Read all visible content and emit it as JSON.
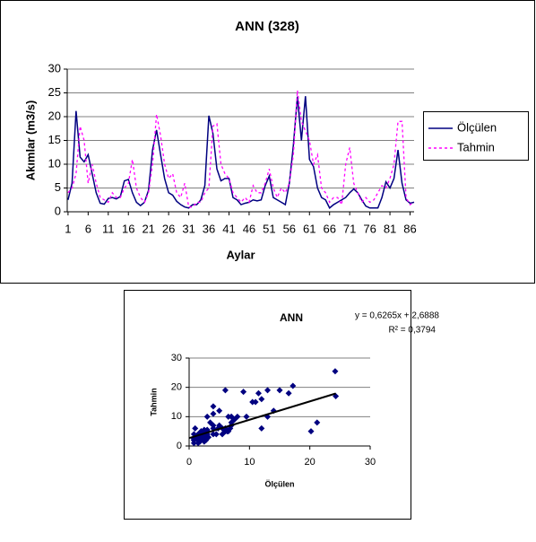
{
  "chart_data": [
    {
      "type": "line",
      "title": "ANN (328)",
      "ylabel": "Akımlar (m3/s)",
      "xlabel": "Aylar",
      "x": [
        1,
        2,
        3,
        4,
        5,
        6,
        7,
        8,
        9,
        10,
        11,
        12,
        13,
        14,
        15,
        16,
        17,
        18,
        19,
        20,
        21,
        22,
        23,
        24,
        25,
        26,
        27,
        28,
        29,
        30,
        31,
        32,
        33,
        34,
        35,
        36,
        37,
        38,
        39,
        40,
        41,
        42,
        43,
        44,
        45,
        46,
        47,
        48,
        49,
        50,
        51,
        52,
        53,
        54,
        55,
        56,
        57,
        58,
        59,
        60,
        61,
        62,
        63,
        64,
        65,
        66,
        67,
        68,
        69,
        70,
        71,
        72,
        73,
        74,
        75,
        76,
        77,
        78,
        79,
        80,
        81,
        82,
        83,
        84,
        85,
        86,
        87
      ],
      "xlim": [
        0.8,
        87
      ],
      "xticks": [
        1,
        6,
        11,
        16,
        21,
        26,
        31,
        36,
        41,
        46,
        51,
        56,
        61,
        66,
        71,
        76,
        81,
        86
      ],
      "ylim": [
        0,
        30
      ],
      "yticks": [
        0,
        5,
        10,
        15,
        20,
        25,
        30
      ],
      "grid": true,
      "legend": "right",
      "series": [
        {
          "name": "Ölçülen",
          "color": "#000080",
          "style": "solid",
          "values": [
            2.5,
            6,
            21.2,
            11.5,
            10.5,
            12,
            8,
            4,
            1.8,
            1.6,
            2.8,
            3,
            2.7,
            3.2,
            6.5,
            6.8,
            4,
            2,
            1.3,
            2,
            4.5,
            13,
            17.2,
            12,
            7,
            4,
            3.5,
            2.2,
            1.5,
            1,
            0.8,
            1.5,
            1.5,
            2.5,
            5.5,
            20.2,
            16.5,
            9,
            6.5,
            7,
            7,
            3,
            2.5,
            1.5,
            1.8,
            2,
            2.5,
            2.3,
            2.5,
            5.5,
            7.5,
            3,
            2.5,
            2,
            1.5,
            6,
            14,
            24.2,
            15,
            24.3,
            11,
            9.5,
            5,
            3,
            2.5,
            0.8,
            1.5,
            2,
            2.5,
            3,
            4,
            4.8,
            4,
            2.5,
            1.2,
            0.8,
            0.8,
            0.8,
            3,
            6.3,
            5,
            7,
            13,
            6,
            2.5,
            1.8,
            2
          ]
        },
        {
          "name": "Tahmin",
          "color": "#ff00ff",
          "style": "dashed",
          "values": [
            4,
            5,
            8,
            18,
            15,
            6,
            10,
            6,
            3,
            2.5,
            2,
            4,
            3,
            3,
            5,
            6,
            11,
            5,
            3,
            2,
            4,
            10,
            20.5,
            16,
            10,
            7,
            8,
            4,
            3,
            6,
            1,
            1,
            2,
            2,
            4,
            5,
            18,
            18.5,
            10,
            8,
            7,
            4,
            3,
            2,
            3,
            2,
            5.5,
            4,
            4,
            6,
            9,
            5,
            3,
            5,
            4,
            6,
            12,
            25.5,
            19,
            17,
            15,
            10,
            12,
            5,
            4,
            2,
            3,
            3,
            1.5,
            10,
            13.5,
            6,
            4,
            2,
            3,
            2,
            2.5,
            4,
            5.5,
            5,
            7,
            10,
            19,
            19,
            3,
            1.5,
            2
          ]
        }
      ]
    },
    {
      "type": "scatter",
      "title": "ANN",
      "xlabel": "Ölçülen",
      "ylabel": "Tahmin",
      "color": "#000080",
      "annotations": [
        "y = 0,6265x + 2,6888",
        "R² = 0,3794"
      ],
      "trendline": {
        "slope": 0.6265,
        "intercept": 2.6888,
        "color": "#000000"
      },
      "xlim": [
        0,
        30
      ],
      "xticks": [
        0,
        10,
        20,
        30
      ],
      "ylim": [
        0,
        30
      ],
      "yticks": [
        0,
        10,
        20,
        30
      ],
      "x": [
        2.5,
        6,
        21.2,
        11.5,
        10.5,
        12,
        8,
        4,
        1.8,
        1.6,
        2.8,
        3,
        2.7,
        3.2,
        6.5,
        6.8,
        4,
        2,
        1.3,
        2,
        4.5,
        13,
        17.2,
        12,
        7,
        4,
        3.5,
        2.2,
        1.5,
        1,
        0.8,
        1.5,
        1.5,
        2.5,
        5.5,
        20.2,
        16.5,
        9,
        6.5,
        7,
        7,
        3,
        2.5,
        1.5,
        1.8,
        2,
        2.5,
        2.3,
        2.5,
        5.5,
        7.5,
        3,
        2.5,
        2,
        1.5,
        6,
        14,
        24.2,
        15,
        24.3,
        11,
        9.5,
        5,
        3,
        2.5,
        0.8,
        1.5,
        2,
        2.5,
        3,
        4,
        4.8,
        4,
        2.5,
        1.2,
        0.8,
        0.8,
        0.8,
        3,
        6.3,
        5,
        7,
        13,
        6,
        2.5,
        1.8,
        2
      ],
      "y": [
        4,
        5,
        8,
        18,
        15,
        6,
        10,
        6,
        3,
        2.5,
        2,
        4,
        3,
        3,
        5,
        6,
        11,
        5,
        3,
        2,
        4,
        10,
        20.5,
        16,
        10,
        7,
        8,
        4,
        3,
        6,
        1,
        1,
        2,
        2,
        4,
        5,
        18,
        18.5,
        10,
        8,
        7,
        4,
        3,
        2,
        3,
        2,
        5.5,
        4,
        4,
        6,
        9,
        5,
        3,
        5,
        4,
        6,
        12,
        25.5,
        19,
        17,
        15,
        10,
        12,
        5,
        4,
        2,
        3,
        3,
        1.5,
        10,
        13.5,
        6,
        4,
        2,
        3,
        2,
        2.5,
        4,
        5.5,
        5,
        7,
        10,
        19,
        19,
        3,
        1.5,
        2
      ]
    }
  ]
}
